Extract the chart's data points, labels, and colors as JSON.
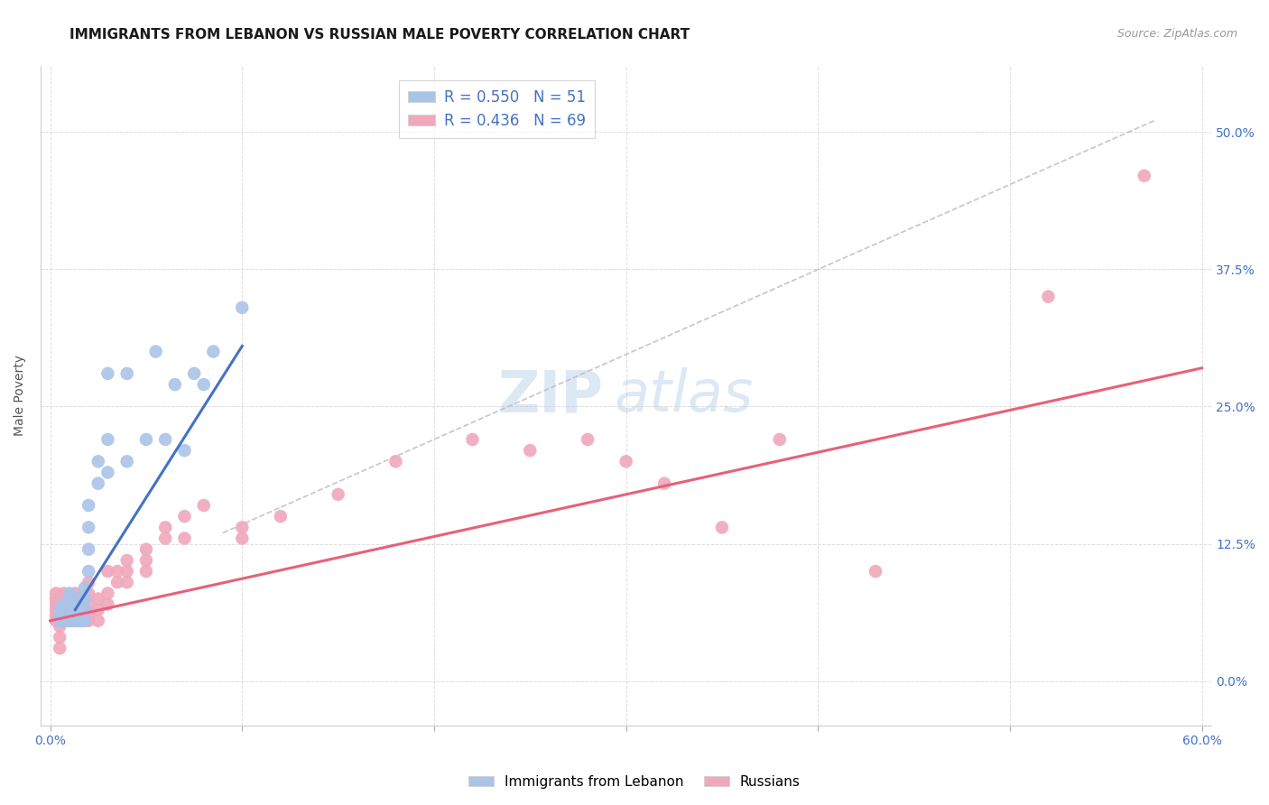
{
  "title": "IMMIGRANTS FROM LEBANON VS RUSSIAN MALE POVERTY CORRELATION CHART",
  "source": "Source: ZipAtlas.com",
  "ylabel": "Male Poverty",
  "y_tick_labels": [
    "0.0%",
    "12.5%",
    "25.0%",
    "37.5%",
    "50.0%"
  ],
  "y_tick_values": [
    0.0,
    0.125,
    0.25,
    0.375,
    0.5
  ],
  "xlim": [
    -0.005,
    0.605
  ],
  "ylim": [
    -0.04,
    0.56
  ],
  "legend_r1": "R = 0.550",
  "legend_n1": "N = 51",
  "legend_r2": "R = 0.436",
  "legend_n2": "N = 69",
  "color_blue": "#aac4e8",
  "color_pink": "#f0a8bb",
  "color_blue_line": "#4472c4",
  "color_pink_line": "#e8607a",
  "color_dashed": "#b8b8b8",
  "watermark_zip": "ZIP",
  "watermark_atlas": "atlas",
  "blue_scatter_x": [
    0.005,
    0.005,
    0.005,
    0.007,
    0.007,
    0.007,
    0.007,
    0.008,
    0.008,
    0.01,
    0.01,
    0.01,
    0.01,
    0.01,
    0.01,
    0.012,
    0.012,
    0.013,
    0.013,
    0.013,
    0.015,
    0.015,
    0.015,
    0.015,
    0.016,
    0.016,
    0.016,
    0.018,
    0.018,
    0.018,
    0.018,
    0.02,
    0.02,
    0.02,
    0.02,
    0.025,
    0.025,
    0.03,
    0.03,
    0.03,
    0.04,
    0.04,
    0.05,
    0.055,
    0.06,
    0.065,
    0.07,
    0.075,
    0.08,
    0.085,
    0.1
  ],
  "blue_scatter_y": [
    0.055,
    0.06,
    0.065,
    0.055,
    0.06,
    0.065,
    0.07,
    0.055,
    0.06,
    0.055,
    0.06,
    0.065,
    0.07,
    0.075,
    0.08,
    0.055,
    0.065,
    0.055,
    0.065,
    0.075,
    0.055,
    0.06,
    0.065,
    0.075,
    0.055,
    0.065,
    0.075,
    0.055,
    0.065,
    0.075,
    0.085,
    0.1,
    0.12,
    0.14,
    0.16,
    0.18,
    0.2,
    0.19,
    0.22,
    0.28,
    0.2,
    0.28,
    0.22,
    0.3,
    0.22,
    0.27,
    0.21,
    0.28,
    0.27,
    0.3,
    0.34
  ],
  "pink_scatter_x": [
    0.003,
    0.003,
    0.003,
    0.003,
    0.003,
    0.003,
    0.005,
    0.005,
    0.005,
    0.005,
    0.005,
    0.005,
    0.005,
    0.005,
    0.007,
    0.007,
    0.007,
    0.007,
    0.01,
    0.01,
    0.01,
    0.01,
    0.01,
    0.013,
    0.013,
    0.013,
    0.013,
    0.016,
    0.016,
    0.016,
    0.02,
    0.02,
    0.02,
    0.02,
    0.02,
    0.025,
    0.025,
    0.025,
    0.03,
    0.03,
    0.03,
    0.035,
    0.035,
    0.04,
    0.04,
    0.04,
    0.05,
    0.05,
    0.05,
    0.06,
    0.06,
    0.07,
    0.07,
    0.08,
    0.1,
    0.1,
    0.12,
    0.15,
    0.18,
    0.22,
    0.25,
    0.28,
    0.3,
    0.32,
    0.35,
    0.38,
    0.43,
    0.52,
    0.57
  ],
  "pink_scatter_y": [
    0.055,
    0.06,
    0.065,
    0.07,
    0.075,
    0.08,
    0.03,
    0.04,
    0.05,
    0.055,
    0.06,
    0.065,
    0.07,
    0.075,
    0.055,
    0.065,
    0.075,
    0.08,
    0.055,
    0.06,
    0.065,
    0.07,
    0.075,
    0.055,
    0.065,
    0.075,
    0.08,
    0.055,
    0.065,
    0.075,
    0.055,
    0.06,
    0.07,
    0.08,
    0.09,
    0.055,
    0.065,
    0.075,
    0.07,
    0.08,
    0.1,
    0.09,
    0.1,
    0.09,
    0.1,
    0.11,
    0.1,
    0.11,
    0.12,
    0.13,
    0.14,
    0.13,
    0.15,
    0.16,
    0.13,
    0.14,
    0.15,
    0.17,
    0.2,
    0.22,
    0.21,
    0.22,
    0.2,
    0.18,
    0.14,
    0.22,
    0.1,
    0.35,
    0.46
  ],
  "blue_line_x": [
    0.013,
    0.1
  ],
  "blue_line_y": [
    0.065,
    0.305
  ],
  "pink_line_x": [
    0.0,
    0.6
  ],
  "pink_line_y": [
    0.055,
    0.285
  ],
  "dashed_line_x": [
    0.09,
    0.575
  ],
  "dashed_line_y": [
    0.135,
    0.51
  ],
  "title_fontsize": 11,
  "label_fontsize": 10,
  "tick_fontsize": 10,
  "source_fontsize": 9,
  "watermark_fontsize_zip": 46,
  "watermark_fontsize_atlas": 46,
  "watermark_color": "#dde8f5",
  "axis_color": "#4472c4",
  "background_color": "#ffffff",
  "grid_color": "#c8c8c8"
}
